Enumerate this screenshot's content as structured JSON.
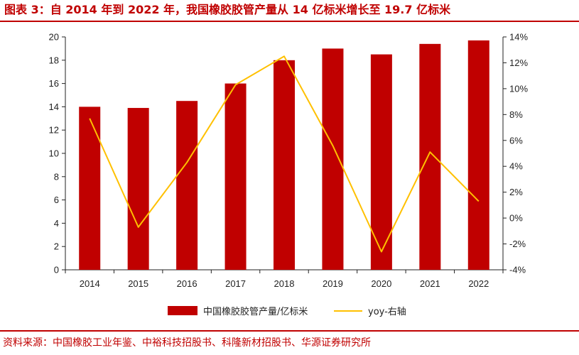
{
  "title": "图表 3：自 2014 年到 2022 年，我国橡胶胶管产量从 14 亿标米增长至 19.7 亿标米",
  "source": "资料来源：中国橡胶工业年鉴、中裕科技招股书、科隆新材招股书、华源证券研究所",
  "chart_data": {
    "type": "bar",
    "categories": [
      "2014",
      "2015",
      "2016",
      "2017",
      "2018",
      "2019",
      "2020",
      "2021",
      "2022"
    ],
    "series": [
      {
        "name": "中国橡胶胶管产量/亿标米",
        "type": "bar",
        "axis": "left",
        "values": [
          14.0,
          13.9,
          14.5,
          16.0,
          18.0,
          19.0,
          18.5,
          19.4,
          19.7
        ],
        "color": "#c00000"
      },
      {
        "name": "yoy-右轴",
        "type": "line",
        "axis": "right",
        "values": [
          7.7,
          -0.7,
          4.3,
          10.3,
          12.5,
          5.6,
          -2.6,
          5.1,
          1.3
        ],
        "color": "#ffc000"
      }
    ],
    "y_left": {
      "min": 0,
      "max": 20,
      "step": 2,
      "tick_labels": [
        "0",
        "2",
        "4",
        "6",
        "8",
        "10",
        "12",
        "14",
        "16",
        "18",
        "20"
      ]
    },
    "y_right": {
      "min": -4,
      "max": 14,
      "step": 2,
      "tick_labels": [
        "-4%",
        "-2%",
        "0%",
        "2%",
        "4%",
        "6%",
        "8%",
        "10%",
        "12%",
        "14%"
      ]
    },
    "grid": false,
    "legend_position": "bottom"
  }
}
